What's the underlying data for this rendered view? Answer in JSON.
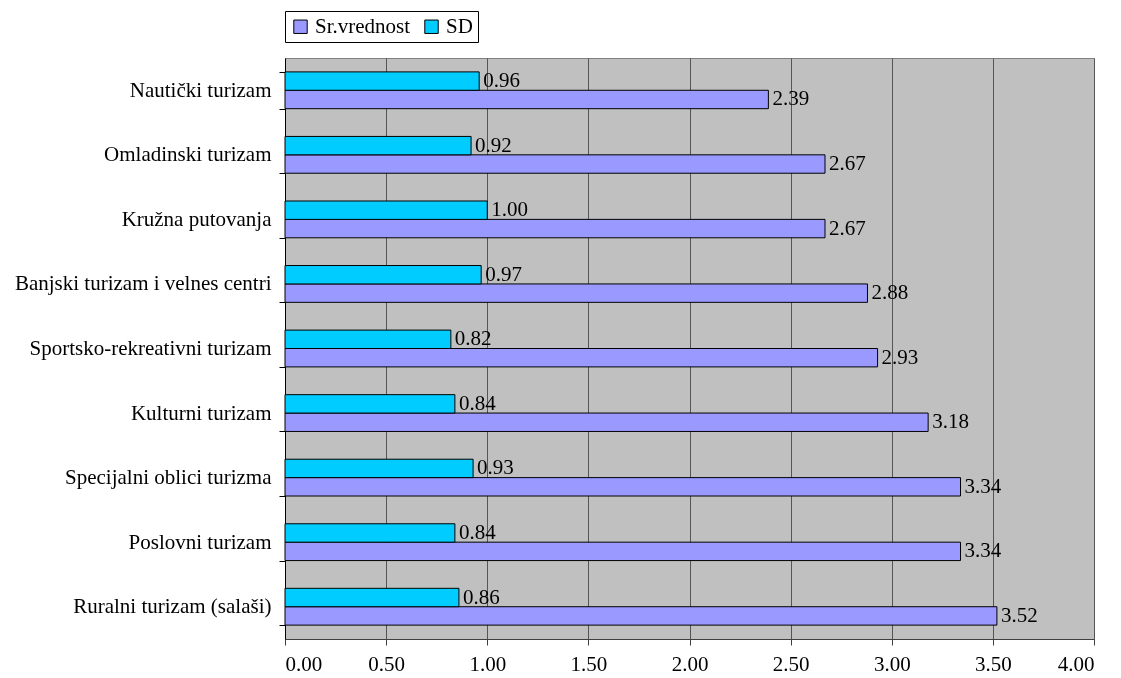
{
  "chart_data": {
    "type": "bar",
    "orientation": "horizontal",
    "categories": [
      "Nautički turizam",
      "Omladinski turizam",
      "Kružna putovanja",
      "Banjski turizam i velnes centri",
      "Sportsko-rekreativni turizam",
      "Kulturni turizam",
      "Specijalni oblici turizma",
      "Poslovni turizam",
      "Ruralni turizam (salaši)"
    ],
    "series": [
      {
        "name": "Sr.vrednost",
        "color": "#9999ff",
        "values": [
          2.39,
          2.67,
          2.67,
          2.88,
          2.93,
          3.18,
          3.34,
          3.34,
          3.52
        ],
        "value_labels": [
          "2.39",
          "2.67",
          "2.67",
          "2.88",
          "2.93",
          "3.18",
          "3.34",
          "3.34",
          "3.52"
        ]
      },
      {
        "name": "SD",
        "color": "#00ccff",
        "values": [
          0.96,
          0.92,
          1.0,
          0.97,
          0.82,
          0.84,
          0.93,
          0.84,
          0.86
        ],
        "value_labels": [
          "0.96",
          "0.92",
          "1.00",
          "0.97",
          "0.82",
          "0.84",
          "0.93",
          "0.84",
          "0.86"
        ]
      }
    ],
    "xlim": [
      0,
      4
    ],
    "xticks": [
      {
        "value": 0,
        "label": "0.00"
      },
      {
        "value": 0.5,
        "label": "0.50"
      },
      {
        "value": 1,
        "label": "1.00"
      },
      {
        "value": 1.5,
        "label": "1.50"
      },
      {
        "value": 2,
        "label": "2.00"
      },
      {
        "value": 2.5,
        "label": "2.50"
      },
      {
        "value": 3,
        "label": "3.00"
      },
      {
        "value": 3.5,
        "label": "3.50"
      },
      {
        "value": 4,
        "label": "4.00"
      }
    ],
    "grid": "x",
    "legend": "top"
  }
}
